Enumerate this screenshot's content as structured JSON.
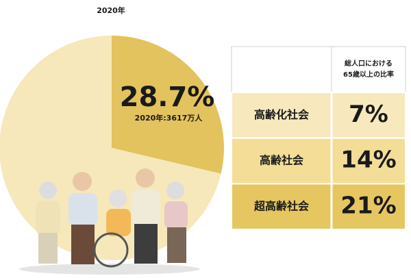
{
  "chart_data": {
    "type": "pie",
    "title": "2020年",
    "values": [
      28.7,
      71.3
    ],
    "value_labels": [
      "28.7%",
      null
    ],
    "colors": [
      "#e3c35e",
      "#f6e8bb"
    ],
    "annotation": "2020年:3617万人"
  },
  "table": {
    "header": {
      "lines": [
        "総人口における",
        "65歳以上の比率"
      ]
    },
    "rows": [
      {
        "label": "高齢化社会",
        "value": "7%",
        "color": "#f7e9bd"
      },
      {
        "label": "高齢社会",
        "value": "14%",
        "color": "#f3dd97"
      },
      {
        "label": "超高齢社会",
        "value": "21%",
        "color": "#e6c660"
      }
    ]
  }
}
